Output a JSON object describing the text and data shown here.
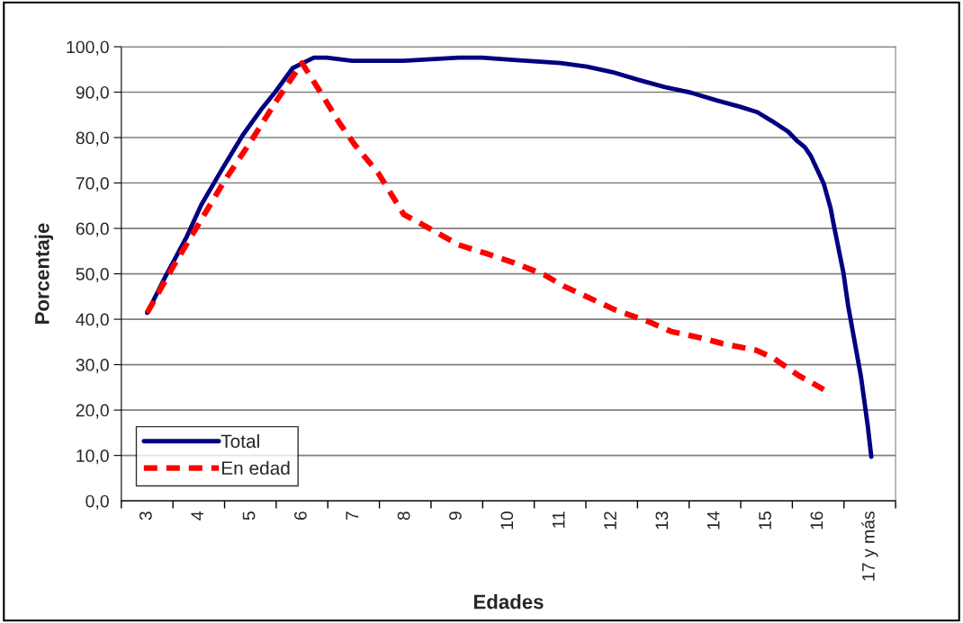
{
  "chart_data": {
    "type": "line",
    "xlabel": "Edades",
    "ylabel": "Porcentaje",
    "xlim": [
      2.5,
      17.5
    ],
    "xticks": [
      {
        "value": 2.5,
        "label": null
      },
      {
        "value": 3,
        "label": "3"
      },
      {
        "value": 3.5,
        "label": null
      },
      {
        "value": 4,
        "label": "4"
      },
      {
        "value": 4.5,
        "label": null
      },
      {
        "value": 5,
        "label": "5"
      },
      {
        "value": 5.5,
        "label": null
      },
      {
        "value": 6,
        "label": "6"
      },
      {
        "value": 6.5,
        "label": null
      },
      {
        "value": 7,
        "label": "7"
      },
      {
        "value": 7.5,
        "label": null
      },
      {
        "value": 8,
        "label": "8"
      },
      {
        "value": 8.5,
        "label": null
      },
      {
        "value": 9,
        "label": "9"
      },
      {
        "value": 9.5,
        "label": null
      },
      {
        "value": 10,
        "label": "10"
      },
      {
        "value": 10.5,
        "label": null
      },
      {
        "value": 11,
        "label": "11"
      },
      {
        "value": 11.5,
        "label": null
      },
      {
        "value": 12,
        "label": "12"
      },
      {
        "value": 12.5,
        "label": null
      },
      {
        "value": 13,
        "label": "13"
      },
      {
        "value": 13.5,
        "label": null
      },
      {
        "value": 14,
        "label": "14"
      },
      {
        "value": 14.5,
        "label": null
      },
      {
        "value": 15,
        "label": "15"
      },
      {
        "value": 15.5,
        "label": null
      },
      {
        "value": 16,
        "label": "16"
      },
      {
        "value": 16.5,
        "label": null
      },
      {
        "value": 17,
        "label": "17 y más"
      },
      {
        "value": 17.5,
        "label": null
      }
    ],
    "ylim": [
      0,
      100
    ],
    "yticks": [
      {
        "value": 0,
        "label": "0,0"
      },
      {
        "value": 10,
        "label": "10,0"
      },
      {
        "value": 20,
        "label": "20,0"
      },
      {
        "value": 30,
        "label": "30,0"
      },
      {
        "value": 40,
        "label": "40,0"
      },
      {
        "value": 50,
        "label": "50,0"
      },
      {
        "value": 60,
        "label": "60,0"
      },
      {
        "value": 70,
        "label": "70,0"
      },
      {
        "value": 80,
        "label": "80,0"
      },
      {
        "value": 90,
        "label": "90,0"
      },
      {
        "value": 100,
        "label": "100,0"
      }
    ],
    "grid": "y",
    "legend": "bottom left",
    "series": [
      {
        "name": "Total",
        "color": "#000080",
        "line_style": "solid",
        "x": [
          3.0,
          3.35,
          3.76,
          4.05,
          4.45,
          4.85,
          5.23,
          5.48,
          5.82,
          6.23,
          6.48,
          6.97,
          7.97,
          9.03,
          9.49,
          10.09,
          11.01,
          11.52,
          12.02,
          12.52,
          13.03,
          13.53,
          14.03,
          14.48,
          14.82,
          15.11,
          15.42,
          15.58,
          15.74,
          15.86,
          16.11,
          16.24,
          16.3,
          16.49,
          16.58,
          16.83,
          16.96,
          17.03
        ],
        "values": [
          41.4,
          49.3,
          58.0,
          65.2,
          73.0,
          80.5,
          86.5,
          90.0,
          95.3,
          97.6,
          97.6,
          96.9,
          96.9,
          97.6,
          97.6,
          97.1,
          96.4,
          95.6,
          94.4,
          92.7,
          91.1,
          89.9,
          88.2,
          86.8,
          85.6,
          83.6,
          81.3,
          79.4,
          77.9,
          75.9,
          69.8,
          64.5,
          60.9,
          50.2,
          43.0,
          27.3,
          16.6,
          9.7
        ]
      },
      {
        "name": "En edad",
        "color": "#ff0000",
        "line_style": "dashed",
        "x": [
          3.0,
          3.5,
          4.0,
          4.5,
          5.0,
          5.5,
          6.0,
          6.38,
          6.72,
          7.03,
          7.47,
          7.97,
          8.53,
          9.03,
          9.56,
          10.09,
          10.69,
          11.07,
          12.08,
          12.71,
          13.15,
          13.72,
          14.16,
          14.79,
          15.11,
          15.61,
          16.11
        ],
        "values": [
          41.4,
          51.5,
          61.0,
          70.5,
          79.0,
          88.0,
          96.4,
          89.6,
          83.3,
          78.3,
          72.3,
          63.1,
          59.6,
          56.4,
          54.5,
          52.5,
          49.8,
          47.3,
          42.0,
          39.5,
          37.3,
          35.9,
          34.6,
          33.2,
          31.6,
          27.7,
          24.5
        ]
      }
    ]
  }
}
